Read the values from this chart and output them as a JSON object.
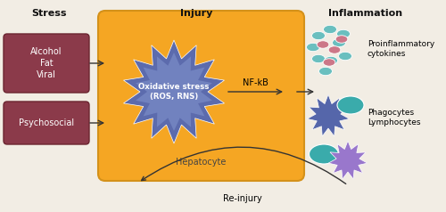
{
  "title_stress": "Stress",
  "title_injury": "Injury",
  "title_inflammation": "Inflammation",
  "box1_text": "Alcohol\nFat\nViral",
  "box2_text": "Psychosocial",
  "oxidative_text": "Oxidative stress\n(ROS, RNS)",
  "nfkb_text": "NF-kB",
  "hepatocyte_text": "Hepatocyte",
  "reinjury_text": "Re-injury",
  "proinflammatory_text": "Proinflammatory\ncytokines",
  "phagocytes_text": "Phagocytes\nLymphocytes",
  "bg_color": "#f2ede4",
  "hepatocyte_fill": "#f5a623",
  "hepatocyte_edge": "#d4911a",
  "box_fill": "#8b3a4a",
  "box_edge": "#6b2530",
  "oxidative_fill_outer": "#5c6bad",
  "oxidative_fill_inner": "#7b8dc8",
  "cytokine_teal": "#6abfbf",
  "cytokine_pink": "#cc7788",
  "phagocyte_teal": "#3aabab",
  "phagocyte_star": "#5566aa",
  "lymphocyte_teal": "#3aabab",
  "lymphocyte_star": "#9977cc",
  "arrow_color": "#333333",
  "header_color": "#111111",
  "label_color": "#444444"
}
